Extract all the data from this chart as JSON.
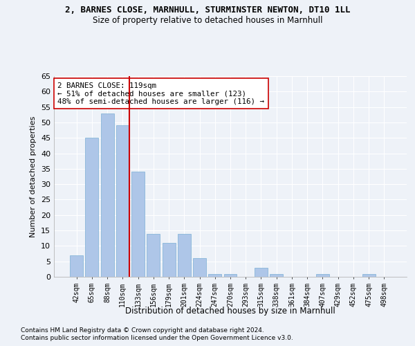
{
  "title1": "2, BARNES CLOSE, MARNHULL, STURMINSTER NEWTON, DT10 1LL",
  "title2": "Size of property relative to detached houses in Marnhull",
  "xlabel": "Distribution of detached houses by size in Marnhull",
  "ylabel": "Number of detached properties",
  "categories": [
    "42sqm",
    "65sqm",
    "88sqm",
    "110sqm",
    "133sqm",
    "156sqm",
    "179sqm",
    "201sqm",
    "224sqm",
    "247sqm",
    "270sqm",
    "293sqm",
    "315sqm",
    "338sqm",
    "361sqm",
    "384sqm",
    "407sqm",
    "429sqm",
    "452sqm",
    "475sqm",
    "498sqm"
  ],
  "values": [
    7,
    45,
    53,
    49,
    34,
    14,
    11,
    14,
    6,
    1,
    1,
    0,
    3,
    1,
    0,
    0,
    1,
    0,
    0,
    1,
    0
  ],
  "bar_color": "#aec6e8",
  "bar_edge_color": "#7aafd4",
  "vline_color": "#cc0000",
  "vline_x": 3.43,
  "annotation_text": "2 BARNES CLOSE: 119sqm\n← 51% of detached houses are smaller (123)\n48% of semi-detached houses are larger (116) →",
  "annotation_box_color": "#ffffff",
  "annotation_box_edge": "#cc0000",
  "ylim": [
    0,
    65
  ],
  "yticks": [
    0,
    5,
    10,
    15,
    20,
    25,
    30,
    35,
    40,
    45,
    50,
    55,
    60,
    65
  ],
  "footer1": "Contains HM Land Registry data © Crown copyright and database right 2024.",
  "footer2": "Contains public sector information licensed under the Open Government Licence v3.0.",
  "bg_color": "#eef2f8",
  "grid_color": "#ffffff"
}
